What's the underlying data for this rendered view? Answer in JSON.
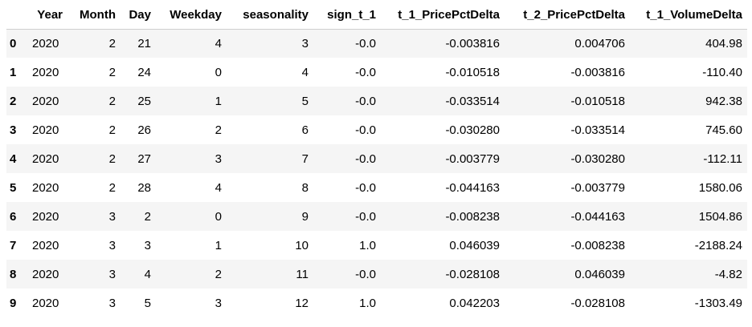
{
  "table": {
    "index_header": "",
    "columns": [
      "Year",
      "Month",
      "Day",
      "Weekday",
      "seasonality",
      "sign_t_1",
      "t_1_PricePctDelta",
      "t_2_PricePctDelta",
      "t_1_VolumeDelta"
    ],
    "rows": [
      {
        "index": "0",
        "cells": [
          "2020",
          "2",
          "21",
          "4",
          "3",
          "-0.0",
          "-0.003816",
          "0.004706",
          "404.98"
        ]
      },
      {
        "index": "1",
        "cells": [
          "2020",
          "2",
          "24",
          "0",
          "4",
          "-0.0",
          "-0.010518",
          "-0.003816",
          "-110.40"
        ]
      },
      {
        "index": "2",
        "cells": [
          "2020",
          "2",
          "25",
          "1",
          "5",
          "-0.0",
          "-0.033514",
          "-0.010518",
          "942.38"
        ]
      },
      {
        "index": "3",
        "cells": [
          "2020",
          "2",
          "26",
          "2",
          "6",
          "-0.0",
          "-0.030280",
          "-0.033514",
          "745.60"
        ]
      },
      {
        "index": "4",
        "cells": [
          "2020",
          "2",
          "27",
          "3",
          "7",
          "-0.0",
          "-0.003779",
          "-0.030280",
          "-112.11"
        ]
      },
      {
        "index": "5",
        "cells": [
          "2020",
          "2",
          "28",
          "4",
          "8",
          "-0.0",
          "-0.044163",
          "-0.003779",
          "1580.06"
        ]
      },
      {
        "index": "6",
        "cells": [
          "2020",
          "3",
          "2",
          "0",
          "9",
          "-0.0",
          "-0.008238",
          "-0.044163",
          "1504.86"
        ]
      },
      {
        "index": "7",
        "cells": [
          "2020",
          "3",
          "3",
          "1",
          "10",
          "1.0",
          "0.046039",
          "-0.008238",
          "-2188.24"
        ]
      },
      {
        "index": "8",
        "cells": [
          "2020",
          "3",
          "4",
          "2",
          "11",
          "-0.0",
          "-0.028108",
          "0.046039",
          "-4.82"
        ]
      },
      {
        "index": "9",
        "cells": [
          "2020",
          "3",
          "5",
          "3",
          "12",
          "1.0",
          "0.042203",
          "-0.028108",
          "-1303.49"
        ]
      }
    ]
  }
}
